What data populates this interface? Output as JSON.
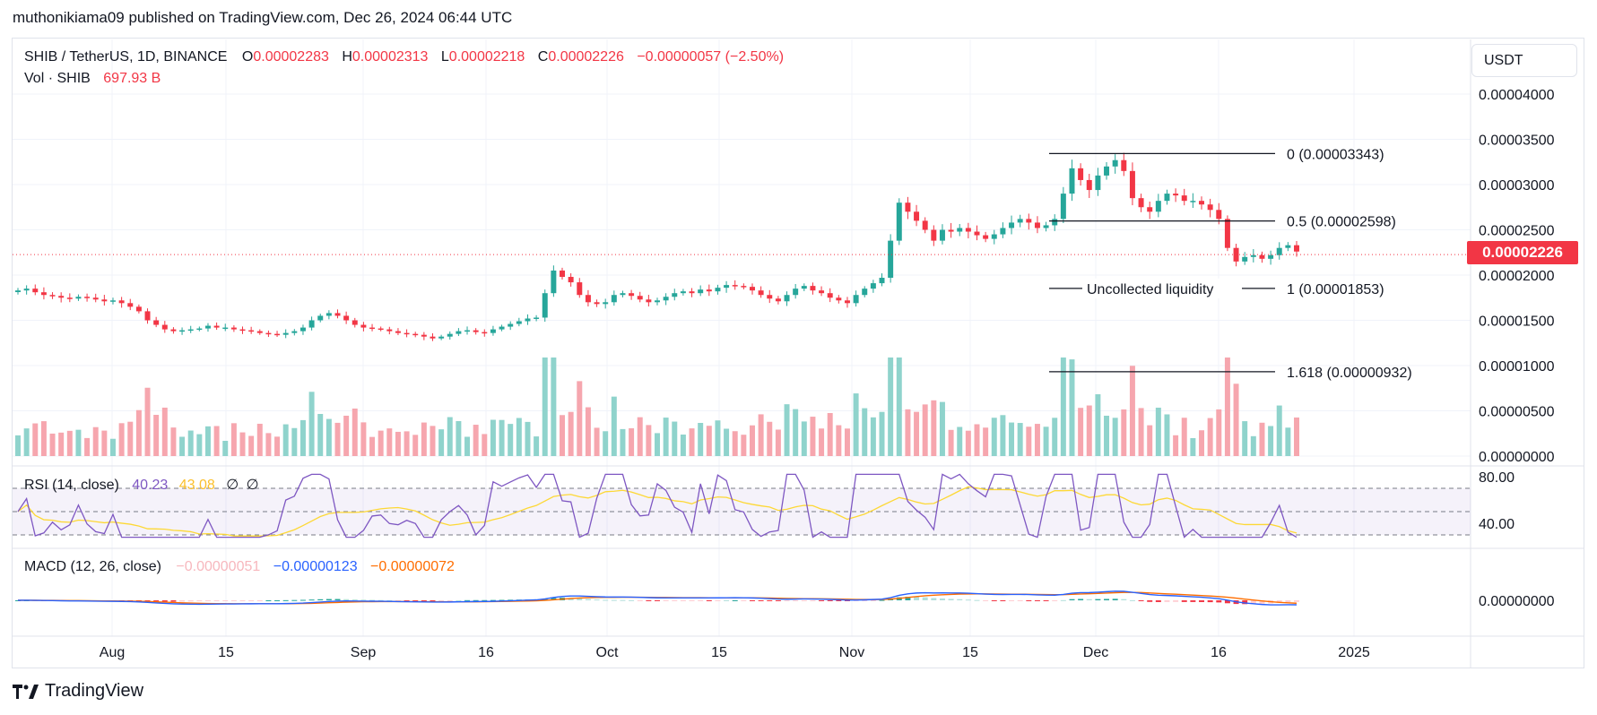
{
  "header": {
    "publisher": "muthonikiama09 published on TradingView.com, Dec 26, 2024 06:44 UTC"
  },
  "legend": {
    "symbol": "SHIB / TetherUS, 1D, BINANCE",
    "o_label": "O",
    "o_val": "0.00002283",
    "h_label": "H",
    "h_val": "0.00002313",
    "l_label": "L",
    "l_val": "0.00002218",
    "c_label": "C",
    "c_val": "0.00002226",
    "change": "−0.00000057 (−2.50%)",
    "vol_label": "Vol · SHIB",
    "vol_val": "697.93 B"
  },
  "rsi_legend": {
    "label": "RSI (14, close)",
    "rsi": "40.23",
    "ma": "43.08",
    "x1": "∅",
    "x2": "∅"
  },
  "macd_legend": {
    "label": "MACD (12, 26, close)",
    "hist": "−0.00000051",
    "macd": "−0.00000123",
    "signal": "−0.00000072"
  },
  "currency": "USDT",
  "last_price": "0.00002226",
  "footer": "TradingView",
  "colors": {
    "up": "#26a69a",
    "down": "#f23645",
    "rsi": "#7e57c2",
    "rsi_ma": "#fdd835",
    "macd": "#2962ff",
    "signal": "#ff6d00",
    "grid": "#f0f3fa"
  },
  "chart_data": {
    "type": "candlestick",
    "symbol": "SHIB / TetherUS",
    "interval": "1D",
    "y_ticks": [
      "0.00004000",
      "0.00003500",
      "0.00003000",
      "0.00002500",
      "0.00002000",
      "0.00001500",
      "0.00001000",
      "0.00000500",
      "0.00000000"
    ],
    "rsi_ticks": [
      "80.00",
      "40.00"
    ],
    "macd_ticks": [
      "0.00000000"
    ],
    "x_ticks": [
      "Aug",
      "15",
      "Sep",
      "16",
      "Oct",
      "15",
      "Nov",
      "15",
      "Dec",
      "16",
      "2025"
    ],
    "fib_levels": [
      {
        "label": "0 (0.00003343)",
        "value": 3.343e-05
      },
      {
        "label": "0.5 (0.00002598)",
        "value": 2.598e-05
      },
      {
        "label": "1 (0.00001853)",
        "value": 1.853e-05
      },
      {
        "label": "1.618 (0.00000932)",
        "value": 9.32e-06
      }
    ],
    "annotation": "Uncollected liquidity",
    "price_close": [
      1.83e-05,
      1.85e-05,
      1.81e-05,
      1.78e-05,
      1.77e-05,
      1.75e-05,
      1.74e-05,
      1.76e-05,
      1.75e-05,
      1.73e-05,
      1.71e-05,
      1.72e-05,
      1.69e-05,
      1.65e-05,
      1.6e-05,
      1.5e-05,
      1.45e-05,
      1.4e-05,
      1.38e-05,
      1.39e-05,
      1.4e-05,
      1.41e-05,
      1.44e-05,
      1.42e-05,
      1.42e-05,
      1.4e-05,
      1.39e-05,
      1.38e-05,
      1.36e-05,
      1.35e-05,
      1.34e-05,
      1.36e-05,
      1.38e-05,
      1.42e-05,
      1.5e-05,
      1.55e-05,
      1.58e-05,
      1.55e-05,
      1.5e-05,
      1.45e-05,
      1.42e-05,
      1.41e-05,
      1.4e-05,
      1.38e-05,
      1.36e-05,
      1.35e-05,
      1.34e-05,
      1.32e-05,
      1.3e-05,
      1.32e-05,
      1.35e-05,
      1.38e-05,
      1.39e-05,
      1.37e-05,
      1.36e-05,
      1.4e-05,
      1.43e-05,
      1.46e-05,
      1.49e-05,
      1.52e-05,
      1.53e-05,
      1.8e-05,
      2.05e-05,
      1.98e-05,
      1.92e-05,
      1.78e-05,
      1.7e-05,
      1.68e-05,
      1.7e-05,
      1.78e-05,
      1.8e-05,
      1.77e-05,
      1.73e-05,
      1.7e-05,
      1.72e-05,
      1.76e-05,
      1.8e-05,
      1.82e-05,
      1.8e-05,
      1.84e-05,
      1.82e-05,
      1.86e-05,
      1.89e-05,
      1.88e-05,
      1.87e-05,
      1.83e-05,
      1.78e-05,
      1.74e-05,
      1.71e-05,
      1.78e-05,
      1.85e-05,
      1.88e-05,
      1.83e-05,
      1.8e-05,
      1.75e-05,
      1.72e-05,
      1.69e-05,
      1.78e-05,
      1.85e-05,
      1.91e-05,
      1.97e-05,
      2.38e-05,
      2.8e-05,
      2.7e-05,
      2.6e-05,
      2.5e-05,
      2.38e-05,
      2.5e-05,
      2.48e-05,
      2.52e-05,
      2.48e-05,
      2.44e-05,
      2.4e-05,
      2.45e-05,
      2.52e-05,
      2.58e-05,
      2.62e-05,
      2.58e-05,
      2.52e-05,
      2.55e-05,
      2.62e-05,
      2.9e-05,
      3.18e-05,
      3.05e-05,
      2.94e-05,
      3.1e-05,
      3.2e-05,
      3.27e-05,
      3.15e-05,
      2.85e-05,
      2.75e-05,
      2.7e-05,
      2.82e-05,
      2.9e-05,
      2.88e-05,
      2.82e-05,
      2.82e-05,
      2.78e-05,
      2.72e-05,
      2.62e-05,
      2.3e-05,
      2.15e-05,
      2.2e-05,
      2.22e-05,
      2.18e-05,
      2.22e-05,
      2.3e-05,
      2.33e-05,
      2.26e-05
    ]
  }
}
